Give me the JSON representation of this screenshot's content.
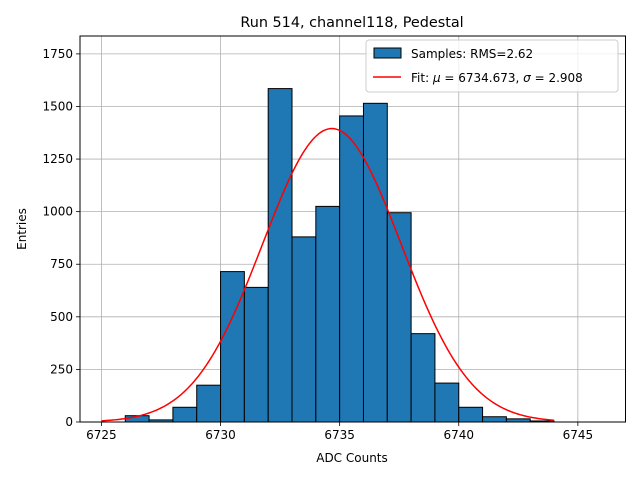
{
  "chart_data": {
    "type": "bar",
    "title": "Run 514, channel118, Pedestal",
    "xlabel": "ADC Counts",
    "ylabel": "Entries",
    "xlim": [
      6724.1,
      6747.0
    ],
    "ylim": [
      0,
      1835
    ],
    "xticks": [
      6725,
      6730,
      6735,
      6740,
      6745
    ],
    "yticks": [
      0,
      250,
      500,
      750,
      1000,
      1250,
      1500,
      1750
    ],
    "grid": true,
    "histogram": {
      "name": "Samples: RMS=2.62",
      "color": "#1f77b4",
      "bins": [
        {
          "x0": 6726,
          "x1": 6727,
          "value": 30
        },
        {
          "x0": 6727,
          "x1": 6728,
          "value": 10
        },
        {
          "x0": 6728,
          "x1": 6729,
          "value": 70
        },
        {
          "x0": 6729,
          "x1": 6730,
          "value": 175
        },
        {
          "x0": 6730,
          "x1": 6731,
          "value": 715
        },
        {
          "x0": 6731,
          "x1": 6732,
          "value": 640
        },
        {
          "x0": 6732,
          "x1": 6733,
          "value": 1585
        },
        {
          "x0": 6733,
          "x1": 6734,
          "value": 880
        },
        {
          "x0": 6734,
          "x1": 6735,
          "value": 1025
        },
        {
          "x0": 6735,
          "x1": 6736,
          "value": 1455
        },
        {
          "x0": 6736,
          "x1": 6737,
          "value": 1515
        },
        {
          "x0": 6737,
          "x1": 6738,
          "value": 995
        },
        {
          "x0": 6738,
          "x1": 6739,
          "value": 420
        },
        {
          "x0": 6739,
          "x1": 6740,
          "value": 185
        },
        {
          "x0": 6740,
          "x1": 6741,
          "value": 70
        },
        {
          "x0": 6741,
          "x1": 6742,
          "value": 25
        },
        {
          "x0": 6742,
          "x1": 6743,
          "value": 15
        },
        {
          "x0": 6743,
          "x1": 6744,
          "value": 5
        }
      ]
    },
    "fit": {
      "name": "Fit: μ = 6734.673, σ = 2.908",
      "type": "gaussian",
      "mu": 6734.673,
      "sigma": 2.908,
      "amplitude": 1395,
      "x_range": [
        6725,
        6744
      ],
      "color": "#ff0000"
    },
    "legend": {
      "location": "top-right",
      "hist_label": "Samples: RMS=2.62",
      "fit_prefix": "Fit: ",
      "fit_mu_symbol": "μ",
      "fit_mu_value": " = 6734.673, ",
      "fit_sigma_symbol": "σ",
      "fit_sigma_value": " = 2.908"
    }
  }
}
